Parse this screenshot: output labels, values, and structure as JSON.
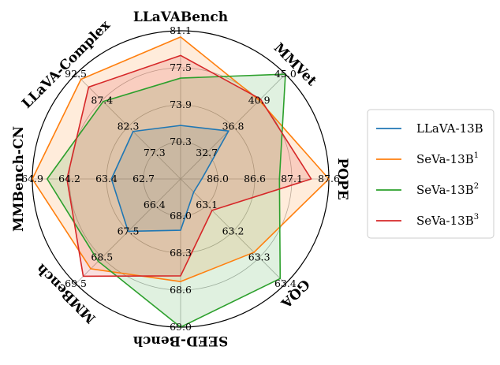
{
  "chart_data": {
    "type": "radar",
    "axes": [
      "LLaVABench",
      "MMVet",
      "POPE",
      "GQA",
      "SEED-Bench",
      "MMBench",
      "MMBench-CN",
      "LLaVA-Complex"
    ],
    "axis_ticks": [
      [
        "70.3",
        "73.9",
        "77.5",
        "81.1"
      ],
      [
        "32.7",
        "36.8",
        "40.9",
        "45.0"
      ],
      [
        "86.0",
        "86.6",
        "87.1",
        "87.6"
      ],
      [
        "63.1",
        "63.2",
        "63.3",
        "63.4"
      ],
      [
        "68.0",
        "68.3",
        "68.6",
        "69.0"
      ],
      [
        "66.4",
        "67.5",
        "68.5",
        "69.5"
      ],
      [
        "62.7",
        "63.4",
        "64.2",
        "64.9"
      ],
      [
        "77.3",
        "82.3",
        "87.4",
        "92.5"
      ]
    ],
    "axis_ranges": [
      [
        66.7,
        81.1
      ],
      [
        28.6,
        45.0
      ],
      [
        85.5,
        87.6
      ],
      [
        63.0,
        63.4
      ],
      [
        67.7,
        69.0
      ],
      [
        65.3,
        69.5
      ],
      [
        61.9,
        64.9
      ],
      [
        72.2,
        92.5
      ]
    ],
    "series": [
      {
        "name": "LLaVA-13B",
        "sup": "",
        "color": "#1f77b4",
        "values": [
          71.9,
          36.1,
          85.8,
          63.05,
          68.15,
          67.4,
          63.3,
          81.4
        ]
      },
      {
        "name": "SeVa-13B",
        "sup": "1",
        "color": "#ff7f0e",
        "values": [
          80.5,
          40.9,
          87.6,
          63.28,
          68.6,
          68.9,
          64.9,
          91.5
        ]
      },
      {
        "name": "SeVa-13B",
        "sup": "2",
        "color": "#2ca02c",
        "values": [
          76.5,
          45.0,
          86.9,
          63.38,
          69.0,
          68.6,
          64.6,
          87.2
        ]
      },
      {
        "name": "SeVa-13B",
        "sup": "3",
        "color": "#d62728",
        "values": [
          78.7,
          41.1,
          87.35,
          63.12,
          68.55,
          69.2,
          64.2,
          90.0
        ]
      }
    ]
  }
}
